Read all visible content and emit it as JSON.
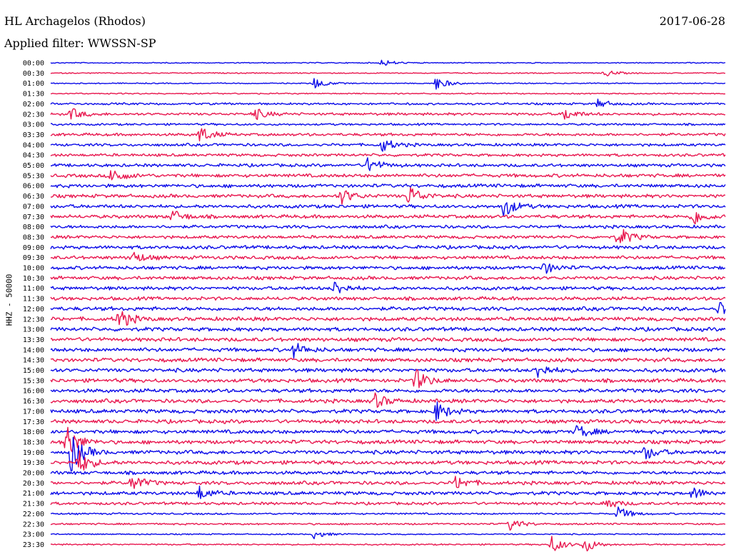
{
  "header": {
    "station": "HL Archagelos (Rhodos)",
    "filter": "Applied filter: WWSSN-SP",
    "date": "2017-06-28"
  },
  "chart_data": {
    "type": "line",
    "title": "HL Archagelos (Rhodos)",
    "subtitle": "Applied filter: WWSSN-SP",
    "ylabel": "HHZ - 50000",
    "rows": [
      "00:00",
      "00:30",
      "01:00",
      "01:30",
      "02:00",
      "02:30",
      "03:00",
      "03:30",
      "04:00",
      "04:30",
      "05:00",
      "05:30",
      "06:00",
      "06:30",
      "07:00",
      "07:30",
      "08:00",
      "08:30",
      "09:00",
      "09:30",
      "10:00",
      "10:30",
      "11:00",
      "11:30",
      "12:00",
      "12:30",
      "13:00",
      "13:30",
      "14:00",
      "14:30",
      "15:00",
      "15:30",
      "16:00",
      "16:30",
      "17:00",
      "17:30",
      "18:00",
      "18:30",
      "19:00",
      "19:30",
      "20:00",
      "20:30",
      "21:00",
      "21:30",
      "22:00",
      "22:30",
      "23:00",
      "23:30"
    ],
    "colors": [
      "#0a0ae8",
      "#e8174f"
    ],
    "noise_level": [
      0.6,
      0.6,
      0.6,
      0.7,
      1.2,
      1.5,
      1.2,
      1.6,
      1.6,
      1.6,
      1.8,
      2.0,
      2.0,
      2.0,
      2.0,
      2.0,
      1.8,
      1.8,
      2.0,
      2.0,
      2.0,
      2.0,
      2.0,
      2.0,
      2.2,
      2.2,
      2.2,
      2.2,
      2.2,
      2.2,
      2.2,
      2.2,
      2.2,
      2.2,
      2.2,
      2.2,
      2.2,
      2.2,
      2.2,
      2.2,
      2.0,
      2.0,
      2.0,
      1.6,
      1.0,
      1.0,
      0.7,
      0.8
    ],
    "events": [
      {
        "row": 0,
        "t": 0.49,
        "amp": 5
      },
      {
        "row": 1,
        "t": 0.82,
        "amp": 5
      },
      {
        "row": 2,
        "t": 0.39,
        "amp": 8
      },
      {
        "row": 2,
        "t": 0.57,
        "amp": 10
      },
      {
        "row": 4,
        "t": 0.81,
        "amp": 6
      },
      {
        "row": 5,
        "t": 0.03,
        "amp": 8
      },
      {
        "row": 5,
        "t": 0.3,
        "amp": 9
      },
      {
        "row": 5,
        "t": 0.76,
        "amp": 9
      },
      {
        "row": 7,
        "t": 0.22,
        "amp": 12
      },
      {
        "row": 8,
        "t": 0.49,
        "amp": 10
      },
      {
        "row": 10,
        "t": 0.47,
        "amp": 11
      },
      {
        "row": 11,
        "t": 0.09,
        "amp": 12
      },
      {
        "row": 13,
        "t": 0.43,
        "amp": 11
      },
      {
        "row": 13,
        "t": 0.53,
        "amp": 15
      },
      {
        "row": 14,
        "t": 0.67,
        "amp": 15
      },
      {
        "row": 15,
        "t": 0.18,
        "amp": 9
      },
      {
        "row": 15,
        "t": 0.95,
        "amp": 13
      },
      {
        "row": 17,
        "t": 0.84,
        "amp": 15
      },
      {
        "row": 19,
        "t": 0.12,
        "amp": 9
      },
      {
        "row": 20,
        "t": 0.73,
        "amp": 8
      },
      {
        "row": 22,
        "t": 0.42,
        "amp": 10
      },
      {
        "row": 24,
        "t": 0.99,
        "amp": 12
      },
      {
        "row": 25,
        "t": 0.1,
        "amp": 15
      },
      {
        "row": 28,
        "t": 0.36,
        "amp": 10
      },
      {
        "row": 30,
        "t": 0.72,
        "amp": 11
      },
      {
        "row": 31,
        "t": 0.54,
        "amp": 16
      },
      {
        "row": 33,
        "t": 0.48,
        "amp": 10
      },
      {
        "row": 34,
        "t": 0.57,
        "amp": 14
      },
      {
        "row": 36,
        "t": 0.78,
        "amp": 10
      },
      {
        "row": 37,
        "t": 0.02,
        "amp": 30
      },
      {
        "row": 38,
        "t": 0.03,
        "amp": 28
      },
      {
        "row": 39,
        "t": 0.04,
        "amp": 18
      },
      {
        "row": 38,
        "t": 0.88,
        "amp": 10
      },
      {
        "row": 41,
        "t": 0.12,
        "amp": 12
      },
      {
        "row": 41,
        "t": 0.6,
        "amp": 10
      },
      {
        "row": 42,
        "t": 0.22,
        "amp": 9
      },
      {
        "row": 42,
        "t": 0.95,
        "amp": 8
      },
      {
        "row": 43,
        "t": 0.82,
        "amp": 9
      },
      {
        "row": 44,
        "t": 0.84,
        "amp": 10
      },
      {
        "row": 45,
        "t": 0.68,
        "amp": 9
      },
      {
        "row": 46,
        "t": 0.39,
        "amp": 6
      },
      {
        "row": 47,
        "t": 0.74,
        "amp": 14
      },
      {
        "row": 47,
        "t": 0.79,
        "amp": 12
      }
    ]
  }
}
